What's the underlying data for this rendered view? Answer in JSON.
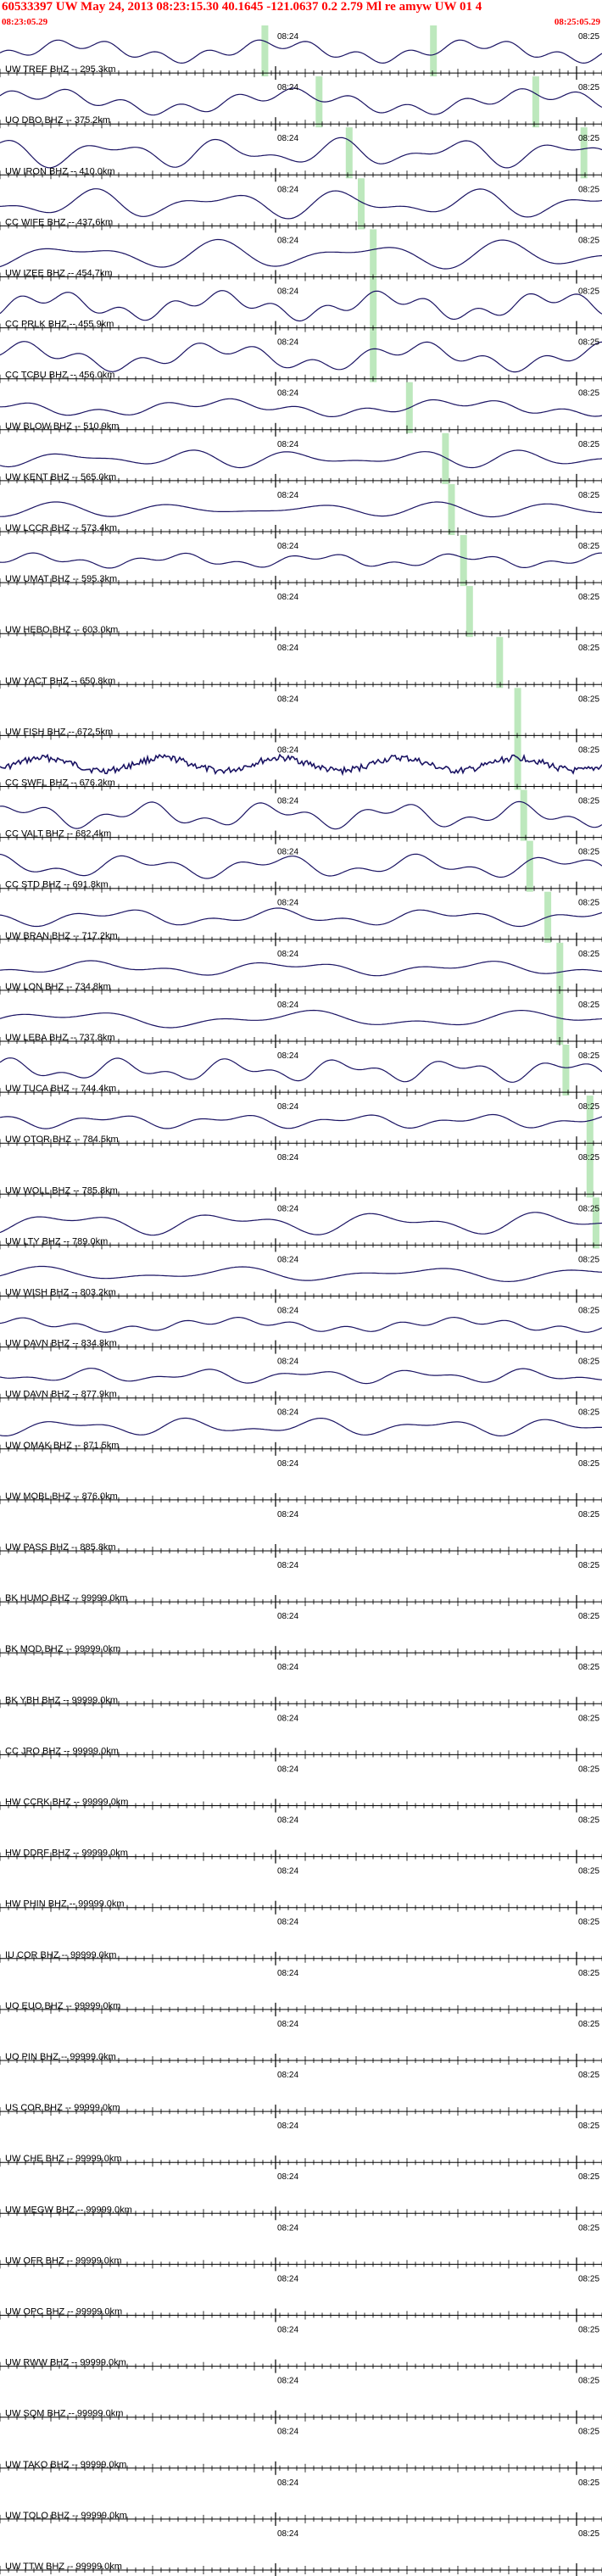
{
  "header": {
    "title": "60533397 UW May 24, 2013 08:23:15.30    40.1645 -121.0637  0.2 2.79 Ml re amyw UW 01   4",
    "time_left": "08:23:05.29",
    "time_right": "08:25:05.29"
  },
  "tick_label_mid": "08:24",
  "tick_label_right": "08:25",
  "colors": {
    "trace": "#1a1363",
    "pick": "#bde8bd",
    "header": "#ff0000",
    "axis": "#000000"
  },
  "traces": [
    {
      "label": "UW TREF BHZ -- 295.3km",
      "active": true,
      "pick": 0.44,
      "pick2": 0.72,
      "amp": 0.8,
      "noise": 0
    },
    {
      "label": "UO DBO BHZ -- 375.2km",
      "active": true,
      "pick": 0.53,
      "pick2": 0.89,
      "amp": 0.9,
      "noise": 0
    },
    {
      "label": "UW IRON BHZ -- 410.0km",
      "active": true,
      "pick": 0.58,
      "pick2": 0.97,
      "amp": 1.0,
      "noise": 0
    },
    {
      "label": "CC WIFE BHZ -- 437.6km",
      "active": true,
      "pick": 0.6,
      "amp": 1.0,
      "noise": 0
    },
    {
      "label": "UW IZEE BHZ -- 454.7km",
      "active": true,
      "pick": 0.62,
      "amp": 1.0,
      "noise": 0
    },
    {
      "label": "CC PRLK BHZ -- 455.9km",
      "active": true,
      "pick": 0.62,
      "amp": 1.0,
      "noise": 0
    },
    {
      "label": "CC TCBU BHZ -- 456.0km",
      "active": true,
      "pick": 0.62,
      "amp": 1.0,
      "noise": 0
    },
    {
      "label": "UW BLOW BHZ -- 510.9km",
      "active": true,
      "pick": 0.68,
      "amp": 0.6,
      "noise": 0
    },
    {
      "label": "UW KENT BHZ -- 565.0km",
      "active": true,
      "pick": 0.74,
      "amp": 0.6,
      "noise": 0
    },
    {
      "label": "UW LCCR BHZ -- 573.4km",
      "active": true,
      "pick": 0.75,
      "amp": 0.5,
      "noise": 0
    },
    {
      "label": "UW UMAT BHZ -- 595.3km",
      "active": true,
      "pick": 0.77,
      "amp": 0.5,
      "noise": 0
    },
    {
      "label": "UW HEBO BHZ -- 603.0km",
      "active": true,
      "pick": 0.78,
      "amp": 0,
      "noise": 0
    },
    {
      "label": "UW YACT BHZ -- 650.8km",
      "active": true,
      "pick": 0.83,
      "amp": 0,
      "noise": 0
    },
    {
      "label": "UW FISH BHZ -- 672.5km",
      "active": true,
      "pick": 0.86,
      "amp": 0,
      "noise": 0
    },
    {
      "label": "CC SWFL BHZ -- 676.2km",
      "active": true,
      "pick": 0.86,
      "amp": 0.7,
      "noise": 1
    },
    {
      "label": "CC VALT BHZ -- 682.4km",
      "active": true,
      "pick": 0.87,
      "amp": 0.9,
      "noise": 0
    },
    {
      "label": "CC STD BHZ -- 691.8km",
      "active": true,
      "pick": 0.88,
      "amp": 0.8,
      "noise": 0
    },
    {
      "label": "UW BRAN BHZ -- 717.2km",
      "active": true,
      "pick": 0.91,
      "amp": 0.6,
      "noise": 0
    },
    {
      "label": "UW LON BHZ -- 734.8km",
      "active": true,
      "pick": 0.93,
      "amp": 0.5,
      "noise": 0
    },
    {
      "label": "UW LEBA BHZ -- 737.8km",
      "active": true,
      "pick": 0.93,
      "amp": 0.6,
      "noise": 0
    },
    {
      "label": "UW TUCA BHZ -- 744.4km",
      "active": true,
      "pick": 0.94,
      "amp": 0.8,
      "noise": 0
    },
    {
      "label": "UW OTOR BHZ -- 784.5km",
      "active": true,
      "pick": 0.98,
      "amp": 0.5,
      "noise": 0
    },
    {
      "label": "UW WOLL BHZ -- 785.8km",
      "active": true,
      "pick": 0.98,
      "amp": 0,
      "noise": 0
    },
    {
      "label": "UW LTY BHZ -- 789.0km",
      "active": true,
      "pick": 0.99,
      "amp": 0.8,
      "noise": 0
    },
    {
      "label": "UW WISH BHZ -- 803.2km",
      "active": true,
      "pick": -1,
      "amp": 0.5,
      "noise": 0
    },
    {
      "label": "UW DAVN BHZ -- 834.8km",
      "active": true,
      "pick": -1,
      "amp": 0.5,
      "noise": 0
    },
    {
      "label": "UW DAVN BHZ -- 877.9km",
      "active": true,
      "pick": -1,
      "amp": 0.5,
      "noise": 0
    },
    {
      "label": "UW OMAK BHZ -- 871.5km",
      "active": true,
      "pick": -1,
      "amp": 0.6,
      "noise": 0
    },
    {
      "label": "UW MOBL BHZ -- 876.0km",
      "active": true,
      "pick": -1,
      "amp": 0,
      "noise": 0
    },
    {
      "label": "UW PASS BHZ -- 885.8km",
      "active": false
    },
    {
      "label": "BK HUMO BHZ -- 99999.0km",
      "active": false
    },
    {
      "label": "BK MOD BHZ -- 99999.0km",
      "active": false
    },
    {
      "label": "BK YBH BHZ -- 99999.0km",
      "active": false
    },
    {
      "label": "CC JRO BHZ -- 99999.0km",
      "active": false
    },
    {
      "label": "HW CCRK BHZ -- 99999.0km",
      "active": false
    },
    {
      "label": "HW DDRF BHZ -- 99999.0km",
      "active": false
    },
    {
      "label": "HW PHIN BHZ -- 99999.0km",
      "active": false
    },
    {
      "label": "IU COR BHZ -- 99999.0km",
      "active": false
    },
    {
      "label": "UO EUO BHZ -- 99999.0km",
      "active": false
    },
    {
      "label": "UO PIN BHZ -- 99999.0km",
      "active": false
    },
    {
      "label": "US COR BHZ -- 99999.0km",
      "active": false
    },
    {
      "label": "UW CHE BHZ -- 99999.0km",
      "active": false
    },
    {
      "label": "UW MEGW BHZ -- 99999.0km",
      "active": false
    },
    {
      "label": "UW OFR BHZ -- 99999.0km",
      "active": false
    },
    {
      "label": "UW OPC BHZ -- 99999.0km",
      "active": false
    },
    {
      "label": "UW RWW BHZ -- 99999.0km",
      "active": false
    },
    {
      "label": "UW SQM BHZ -- 99999.0km",
      "active": false
    },
    {
      "label": "UW TAKO BHZ -- 99999.0km",
      "active": false
    },
    {
      "label": "UW TOLO BHZ -- 99999.0km",
      "active": false
    },
    {
      "label": "UW TTW BHZ -- 99999.0km",
      "active": false
    }
  ]
}
